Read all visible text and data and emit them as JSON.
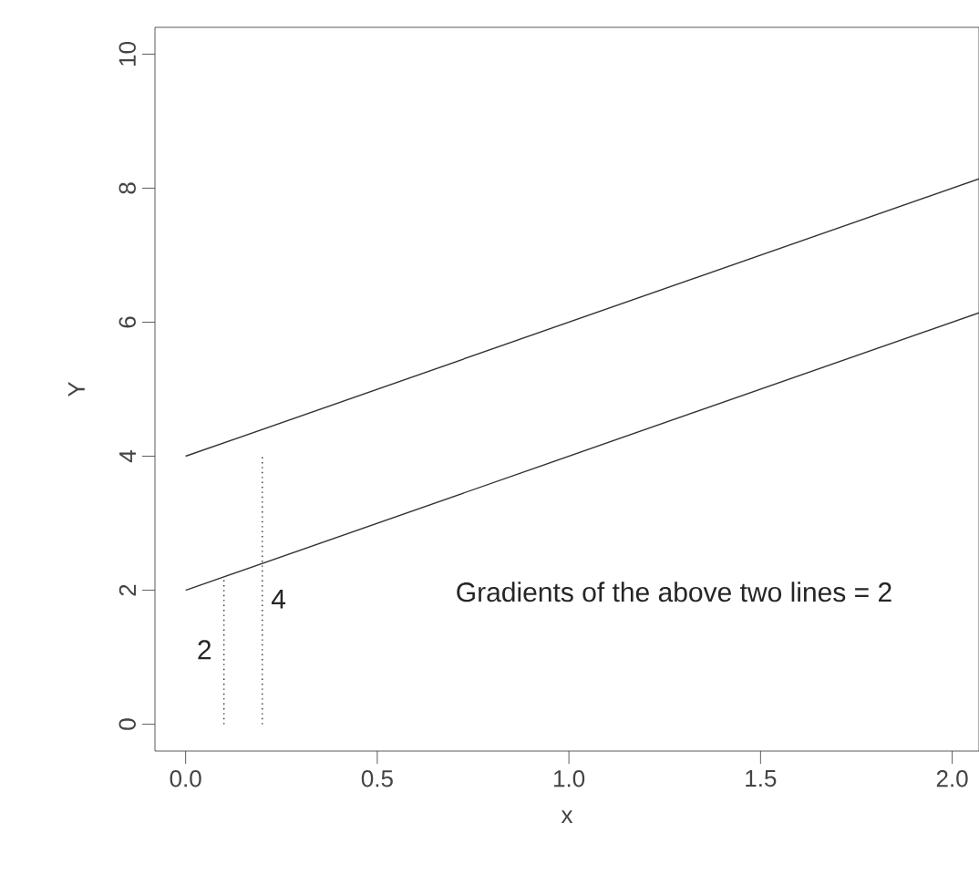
{
  "chart_data": {
    "type": "line",
    "xlabel": "x",
    "ylabel": "Y",
    "xlim": [
      -0.08,
      2.07
    ],
    "ylim": [
      -0.4,
      10.4
    ],
    "xticks": [
      {
        "value": 0,
        "label": "0.0"
      },
      {
        "value": 0.5,
        "label": "0.5"
      },
      {
        "value": 1,
        "label": "1.0"
      },
      {
        "value": 1.5,
        "label": "1.5"
      },
      {
        "value": 2,
        "label": "2.0"
      }
    ],
    "yticks": [
      0,
      2,
      4,
      6,
      8,
      10
    ],
    "marker": "none",
    "series": [
      {
        "color": "#333333",
        "x": [
          0,
          2.07
        ],
        "values": [
          4,
          8.14
        ],
        "line_style": "solid"
      },
      {
        "color": "#333333",
        "x": [
          0,
          2.07
        ],
        "values": [
          2,
          6.14
        ],
        "line_style": "solid"
      },
      {
        "color": "#333333",
        "x": [
          0.1,
          0.1
        ],
        "values": [
          0,
          2.2
        ],
        "line_style": "dotted"
      },
      {
        "color": "#333333",
        "x": [
          0.2,
          0.2
        ],
        "values": [
          0,
          4
        ],
        "line_style": "dotted"
      }
    ],
    "annotations": [
      "2",
      "4",
      "Gradients of the above two lines = 2"
    ]
  }
}
